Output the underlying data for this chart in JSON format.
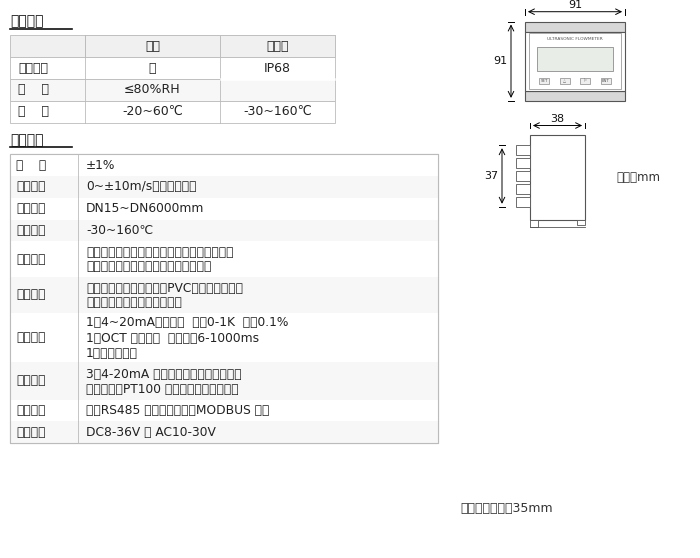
{
  "title_env": "工作环境",
  "title_params": "基本参数",
  "env_headers": [
    "",
    "主机",
    "传感器"
  ],
  "env_rows": [
    [
      "防护等级",
      "无",
      "IP68"
    ],
    [
      "湿    度",
      "≤80%RH",
      ""
    ],
    [
      "温    度",
      "-20~60℃",
      "-30~160℃"
    ]
  ],
  "param_rows": [
    [
      "精    度",
      "±1%"
    ],
    [
      "流速范围",
      "0~±10m/s，正反向测量"
    ],
    [
      "管道口径",
      "DN15~DN6000mm"
    ],
    [
      "流体温度",
      "-30~160℃"
    ],
    [
      "流体种类",
      "水、海水、污水、酸碱液、酒精、啤酒、各类\n油类等能传导超声波的单一均匀液体。"
    ],
    [
      "管道材质",
      "钢、不锈钢、铸铁、铜、PVC、铝、玻璃钢等\n一切质密的管道，允许有衬里"
    ],
    [
      "信号输出",
      "1路4~20mA电流输出  阻抗0-1K  精度0.1%\n1路OCT 脉冲输出  脉冲宽度6-1000ms\n1路继电器输出"
    ],
    [
      "信号输入",
      "3路4-20mA 电流输入，可做数据采集器\n连接三线制PT100 铂电阻，实现热量测量"
    ],
    [
      "通信接口",
      "隔离RS485 串行接口，支持MODBUS 协议"
    ],
    [
      "供电方式",
      "DC8-36V 或 AC10-30V"
    ]
  ],
  "unit_text": "单位：mm",
  "rail_text": "适用导轨宽度：35mm",
  "dim_91_top": "91",
  "dim_91_side": "91",
  "dim_38": "38",
  "dim_37": "37",
  "bg_color": "#ffffff",
  "border_color": "#bbbbbb",
  "header_bg": "#f0f0f0",
  "row_bg_alt": "#f7f7f7"
}
